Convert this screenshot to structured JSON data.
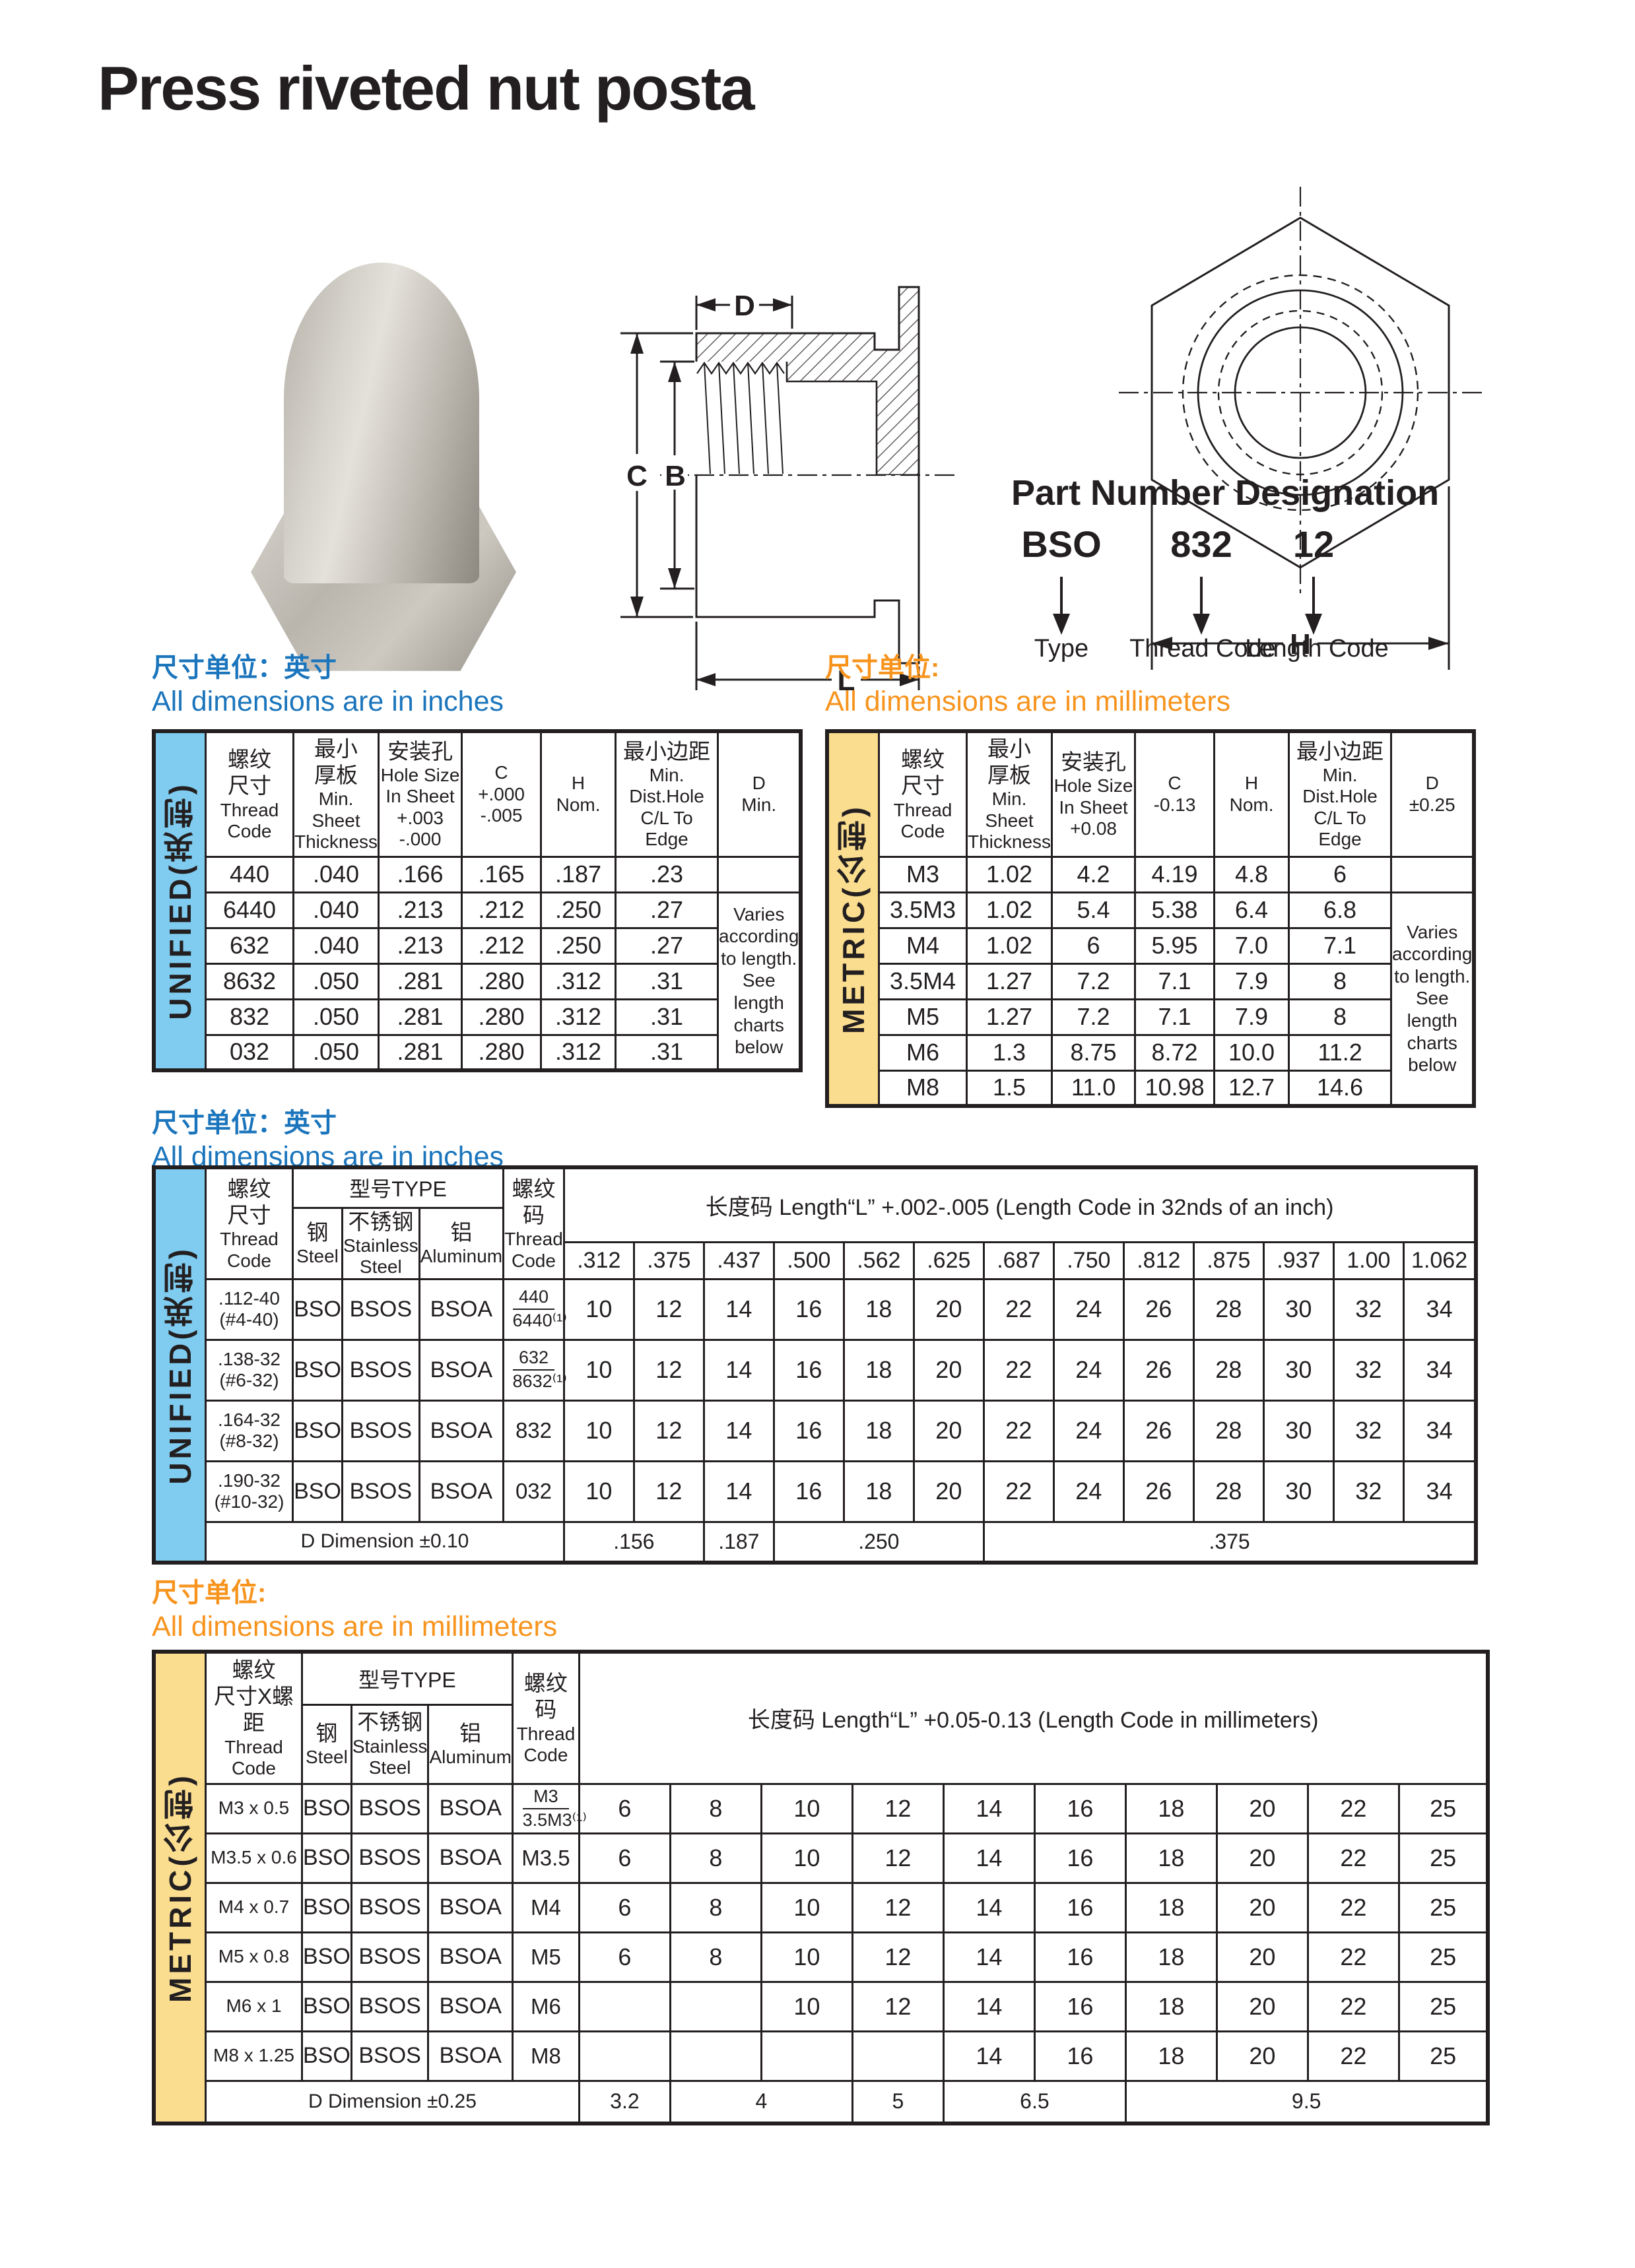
{
  "title": "Press riveted nut posta",
  "colors": {
    "ink": "#231f20",
    "blue": "#1b75bc",
    "orange": "#f7941e",
    "sidebar_blue": "#7fccf0",
    "sidebar_orange": "#fadd8f"
  },
  "drawing": {
    "d": "D",
    "c": "C",
    "b": "B",
    "l": "L",
    "h": "H"
  },
  "part_number": {
    "title": "Part Number Designation",
    "codes": [
      "BSO",
      "832",
      "12"
    ],
    "labels": [
      "Type",
      "Thread Code",
      "Length Code"
    ]
  },
  "headings": {
    "inches": {
      "zh": "尺寸单位：英寸",
      "en": "All dimensions are in inches"
    },
    "mm": {
      "zh": "尺寸单位:",
      "en": "All dimensions are in millimeters"
    }
  },
  "dim_unified": {
    "side": "UNIFIED(英制)",
    "cols": [
      [
        "螺纹",
        "尺寸",
        "Thread",
        "Code"
      ],
      [
        "最小",
        "厚板",
        "Min.",
        "Sheet",
        "Thickness"
      ],
      [
        "安装孔",
        "Hole Size",
        "In Sheet",
        "+.003",
        "-.000"
      ],
      [
        "C",
        "+.000",
        "-.005"
      ],
      [
        "H",
        "Nom."
      ],
      [
        "最小边距",
        "Min.",
        "Dist.Hole",
        "C/L To Edge"
      ],
      [
        "D",
        "Min."
      ]
    ],
    "rows": [
      [
        "440",
        ".040",
        ".166",
        ".165",
        ".187",
        ".23"
      ],
      [
        "6440",
        ".040",
        ".213",
        ".212",
        ".250",
        ".27"
      ],
      [
        "632",
        ".040",
        ".213",
        ".212",
        ".250",
        ".27"
      ],
      [
        "8632",
        ".050",
        ".281",
        ".280",
        ".312",
        ".31"
      ],
      [
        "832",
        ".050",
        ".281",
        ".280",
        ".312",
        ".31"
      ],
      [
        "032",
        ".050",
        ".281",
        ".280",
        ".312",
        ".31"
      ]
    ],
    "varies": "Varies according to length. See length charts below"
  },
  "dim_metric": {
    "side": "METRIC(公制)",
    "cols": [
      [
        "螺纹",
        "尺寸",
        "Thread",
        "Code"
      ],
      [
        "最小",
        "厚板",
        "Min.",
        "Sheet",
        "Thickness"
      ],
      [
        "安装孔",
        "Hole Size",
        "In Sheet",
        "+0.08"
      ],
      [
        "C",
        "-0.13"
      ],
      [
        "H",
        "Nom."
      ],
      [
        "最小边距",
        "Min.",
        "Dist.Hole",
        "C/L To Edge"
      ],
      [
        "D",
        "±0.25"
      ]
    ],
    "rows": [
      [
        "M3",
        "1.02",
        "4.2",
        "4.19",
        "4.8",
        "6"
      ],
      [
        "3.5M3",
        "1.02",
        "5.4",
        "5.38",
        "6.4",
        "6.8"
      ],
      [
        "M4",
        "1.02",
        "6",
        "5.95",
        "7.0",
        "7.1"
      ],
      [
        "3.5M4",
        "1.27",
        "7.2",
        "7.1",
        "7.9",
        "8"
      ],
      [
        "M5",
        "1.27",
        "7.2",
        "7.1",
        "7.9",
        "8"
      ],
      [
        "M6",
        "1.3",
        "8.75",
        "8.72",
        "10.0",
        "11.2"
      ],
      [
        "M8",
        "1.5",
        "11.0",
        "10.98",
        "12.7",
        "14.6"
      ]
    ],
    "varies": "Varies according to length. See length charts below"
  },
  "len_unified": {
    "side": "UNIFIED(英制)",
    "thread_head": [
      "螺纹",
      "尺寸",
      "Thread",
      "Code"
    ],
    "type_head": "型号TYPE",
    "type_cols": [
      [
        "钢",
        "Steel"
      ],
      [
        "不锈钢",
        "Stainless",
        "Steel"
      ],
      [
        "铝",
        "Aluminum"
      ]
    ],
    "code_head": [
      "螺纹码",
      "Thread",
      "Code"
    ],
    "len_head": "长度码 Length“L”  +.002-.005  (Length Code in 32nds of an inch)",
    "len_cols": [
      ".312",
      ".375",
      ".437",
      ".500",
      ".562",
      ".625",
      ".687",
      ".750",
      ".812",
      ".875",
      ".937",
      "1.00",
      "1.062"
    ],
    "rows": [
      {
        "thread": [
          ".112-40",
          "(#4-40)"
        ],
        "types": [
          "BSO",
          "BSOS",
          "BSOA"
        ],
        "code": [
          "440",
          "6440⁽¹⁾"
        ],
        "lens": [
          "10",
          "12",
          "14",
          "16",
          "18",
          "20",
          "22",
          "24",
          "26",
          "28",
          "30",
          "32",
          "34"
        ]
      },
      {
        "thread": [
          ".138-32",
          "(#6-32)"
        ],
        "types": [
          "BSO",
          "BSOS",
          "BSOA"
        ],
        "code": [
          "632",
          "8632⁽¹⁾"
        ],
        "lens": [
          "10",
          "12",
          "14",
          "16",
          "18",
          "20",
          "22",
          "24",
          "26",
          "28",
          "30",
          "32",
          "34"
        ]
      },
      {
        "thread": [
          ".164-32",
          "(#8-32)"
        ],
        "types": [
          "BSO",
          "BSOS",
          "BSOA"
        ],
        "code": [
          "832"
        ],
        "lens": [
          "10",
          "12",
          "14",
          "16",
          "18",
          "20",
          "22",
          "24",
          "26",
          "28",
          "30",
          "32",
          "34"
        ]
      },
      {
        "thread": [
          ".190-32",
          "(#10-32)"
        ],
        "types": [
          "BSO",
          "BSOS",
          "BSOA"
        ],
        "code": [
          "032"
        ],
        "lens": [
          "10",
          "12",
          "14",
          "16",
          "18",
          "20",
          "22",
          "24",
          "26",
          "28",
          "30",
          "32",
          "34"
        ]
      }
    ],
    "d_row": {
      "label": "D Dimension ±0.10",
      "cells": [
        {
          "v": ".156",
          "span": 2
        },
        {
          "v": ".187",
          "span": 1
        },
        {
          "v": ".250",
          "span": 3
        },
        {
          "v": ".375",
          "span": 7
        }
      ]
    }
  },
  "len_metric": {
    "side": "METRIC(公制)",
    "thread_head": [
      "螺纹",
      "尺寸X螺距",
      "Thread",
      "Code"
    ],
    "type_head": "型号TYPE",
    "type_cols": [
      [
        "钢",
        "Steel"
      ],
      [
        "不锈钢",
        "Stainless",
        "Steel"
      ],
      [
        "铝",
        "Aluminum"
      ]
    ],
    "code_head": [
      "螺纹码",
      "Thread",
      "Code"
    ],
    "len_head": "长度码 Length“L”  +0.05-0.13  (Length Code in millimeters)",
    "rows": [
      {
        "thread": [
          "M3 x 0.5"
        ],
        "types": [
          "BSO",
          "BSOS",
          "BSOA"
        ],
        "code": [
          "M3",
          "3.5M3⁽¹⁾"
        ],
        "lens": [
          "6",
          "8",
          "10",
          "12",
          "14",
          "16",
          "18",
          "20",
          "22",
          "25"
        ]
      },
      {
        "thread": [
          "M3.5 x 0.6"
        ],
        "types": [
          "BSO",
          "BSOS",
          "BSOA"
        ],
        "code": [
          "M3.5"
        ],
        "lens": [
          "6",
          "8",
          "10",
          "12",
          "14",
          "16",
          "18",
          "20",
          "22",
          "25"
        ]
      },
      {
        "thread": [
          "M4 x 0.7"
        ],
        "types": [
          "BSO",
          "BSOS",
          "BSOA"
        ],
        "code": [
          "M4"
        ],
        "lens": [
          "6",
          "8",
          "10",
          "12",
          "14",
          "16",
          "18",
          "20",
          "22",
          "25"
        ]
      },
      {
        "thread": [
          "M5 x 0.8"
        ],
        "types": [
          "BSO",
          "BSOS",
          "BSOA"
        ],
        "code": [
          "M5"
        ],
        "lens": [
          "6",
          "8",
          "10",
          "12",
          "14",
          "16",
          "18",
          "20",
          "22",
          "25"
        ]
      },
      {
        "thread": [
          "M6 x 1"
        ],
        "types": [
          "BSO",
          "BSOS",
          "BSOA"
        ],
        "code": [
          "M6"
        ],
        "lens": [
          "",
          "",
          "10",
          "12",
          "14",
          "16",
          "18",
          "20",
          "22",
          "25"
        ]
      },
      {
        "thread": [
          "M8 x 1.25"
        ],
        "types": [
          "BSO",
          "BSOS",
          "BSOA"
        ],
        "code": [
          "M8"
        ],
        "lens": [
          "",
          "",
          "",
          "",
          "14",
          "16",
          "18",
          "20",
          "22",
          "25"
        ]
      }
    ],
    "d_row": {
      "label": "D Dimension ±0.25",
      "cells": [
        {
          "v": "3.2",
          "span": 1
        },
        {
          "v": "4",
          "span": 2
        },
        {
          "v": "5",
          "span": 1
        },
        {
          "v": "6.5",
          "span": 2
        },
        {
          "v": "9.5",
          "span": 4
        }
      ]
    }
  }
}
